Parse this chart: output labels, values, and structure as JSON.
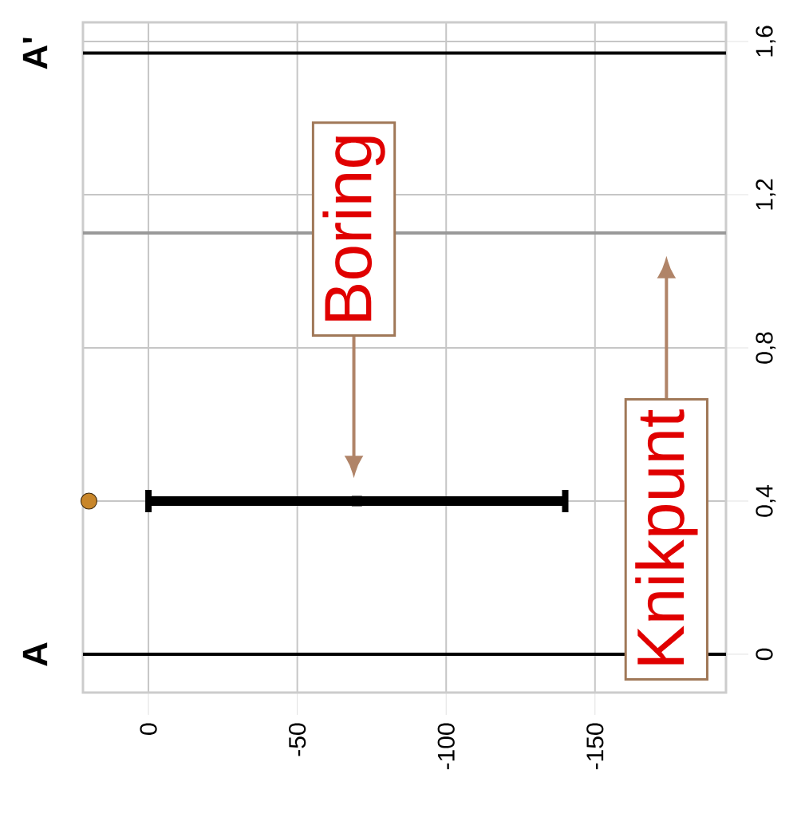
{
  "chart_data": {
    "type": "scatter",
    "xlim": [
      22,
      -194
    ],
    "ylim": [
      -0.1,
      1.65
    ],
    "yticks": [
      0,
      {
        "value": 0.4,
        "label": "0,4"
      },
      {
        "value": 0.8,
        "label": "0,8"
      },
      {
        "value": 1.2,
        "label": "1,2"
      },
      {
        "value": 1.6,
        "label": "1,6"
      }
    ],
    "xticks": [
      0,
      -50,
      -100,
      -150
    ],
    "grid": true,
    "series": [
      {
        "color": "#000000",
        "marker": "square",
        "x": [
          -70
        ],
        "values": [
          0.4
        ],
        "xerrors": [
          70
        ]
      },
      {
        "color": "#c8862a",
        "marker": "circle",
        "x": [
          20
        ],
        "values": [
          0.4
        ]
      }
    ],
    "ref_lines": [
      {
        "axis": "y",
        "value": 0,
        "label": "A",
        "color": "#000000"
      },
      {
        "axis": "y",
        "value": 1.57,
        "label": "A'",
        "color": "#000000"
      },
      {
        "axis": "y",
        "value": 1.1,
        "color": "#999999"
      }
    ],
    "annotations": [
      "Boring",
      "Knikpunt"
    ]
  }
}
